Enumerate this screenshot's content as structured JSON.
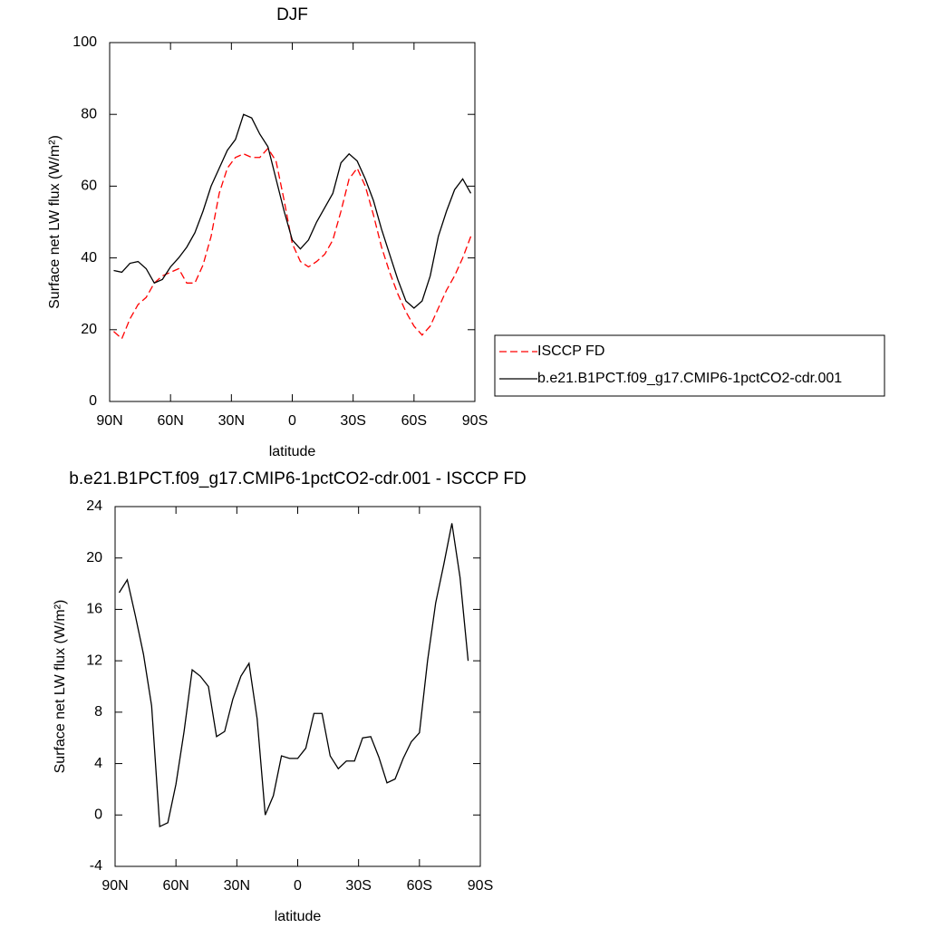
{
  "chart_data": [
    {
      "type": "line",
      "title": "DJF",
      "xlabel": "latitude",
      "ylabel": "Surface net LW flux (W/m²)",
      "x": [
        88,
        84,
        80,
        76,
        72,
        68,
        64,
        60,
        56,
        52,
        48,
        44,
        40,
        36,
        32,
        28,
        24,
        20,
        16,
        12,
        8,
        4,
        0,
        -4,
        -8,
        -12,
        -16,
        -20,
        -24,
        -28,
        -32,
        -36,
        -40,
        -44,
        -48,
        -52,
        -56,
        -60,
        -64,
        -68,
        -72,
        -76,
        -80,
        -84,
        -88
      ],
      "series": [
        {
          "name": "ISCCP FD",
          "color": "#ff0000",
          "line_style": "dashed",
          "values": [
            19.5,
            17.5,
            23,
            27,
            29,
            33,
            35,
            36,
            37,
            33,
            33,
            38,
            46,
            58,
            65,
            68,
            69,
            68,
            68,
            70.5,
            67,
            56,
            44,
            39,
            37.5,
            39,
            41,
            45,
            53,
            62,
            65,
            60,
            52,
            43,
            36,
            30,
            25,
            21,
            18.5,
            21,
            26,
            31,
            35,
            40,
            46
          ]
        },
        {
          "name": "b.e21.B1PCT.f09_g17.CMIP6-1pctCO2-cdr.001",
          "color": "#000000",
          "line_style": "solid",
          "values": [
            36.5,
            36,
            38.5,
            39,
            37,
            33,
            34,
            37.5,
            40,
            43,
            47,
            53,
            60,
            65,
            70,
            73,
            80,
            79,
            74.5,
            71,
            62,
            53,
            45,
            42.5,
            45,
            50,
            54,
            58,
            66.5,
            69,
            67,
            62,
            56,
            48,
            41,
            34,
            28,
            26,
            28,
            35,
            46,
            53,
            59,
            62,
            58
          ]
        }
      ],
      "xlim": [
        90,
        -90
      ],
      "xticks": [
        {
          "value": 90,
          "label": "90N"
        },
        {
          "value": 60,
          "label": "60N"
        },
        {
          "value": 30,
          "label": "30N"
        },
        0,
        {
          "value": -30,
          "label": "30S"
        },
        {
          "value": -60,
          "label": "60S"
        },
        {
          "value": -90,
          "label": "90S"
        }
      ],
      "ylim": [
        0,
        100
      ],
      "yticks": [
        0,
        20,
        40,
        60,
        80,
        100
      ],
      "legend": "right"
    },
    {
      "type": "line",
      "title": "b.e21.B1PCT.f09_g17.CMIP6-1pctCO2-cdr.001 - ISCCP FD",
      "xlabel": "latitude",
      "ylabel": "Surface net LW flux (W/m²)",
      "x": [
        88,
        84,
        80,
        76,
        72,
        68,
        64,
        60,
        56,
        52,
        48,
        44,
        40,
        36,
        32,
        28,
        24,
        20,
        16,
        12,
        8,
        4,
        0,
        -4,
        -8,
        -12,
        -16,
        -20,
        -24,
        -28,
        -32,
        -36,
        -40,
        -44,
        -48,
        -52,
        -56,
        -60,
        -64,
        -68,
        -72,
        -76,
        -80,
        -84
      ],
      "series": [
        {
          "color": "#000000",
          "line_style": "solid",
          "values": [
            17.3,
            18.3,
            15.5,
            12.5,
            8.5,
            -0.9,
            -0.6,
            2.4,
            6.5,
            11.3,
            10.8,
            10,
            6.1,
            6.5,
            9,
            10.8,
            11.8,
            7.5,
            0,
            1.5,
            4.6,
            4.4,
            4.4,
            5.2,
            7.9,
            7.9,
            4.6,
            3.6,
            4.2,
            4.2,
            6,
            6.1,
            4.5,
            2.5,
            2.8,
            4.4,
            5.7,
            6.4,
            12,
            16.5,
            19.5,
            22.7,
            18.5,
            12
          ]
        }
      ],
      "xlim": [
        90,
        -90
      ],
      "xticks": [
        {
          "value": 90,
          "label": "90N"
        },
        {
          "value": 60,
          "label": "60N"
        },
        {
          "value": 30,
          "label": "30N"
        },
        0,
        {
          "value": -30,
          "label": "30S"
        },
        {
          "value": -60,
          "label": "60S"
        },
        {
          "value": -90,
          "label": "90S"
        }
      ],
      "ylim": [
        -4,
        24
      ],
      "yticks": [
        -4,
        0,
        4,
        8,
        12,
        16,
        20,
        24
      ]
    }
  ]
}
